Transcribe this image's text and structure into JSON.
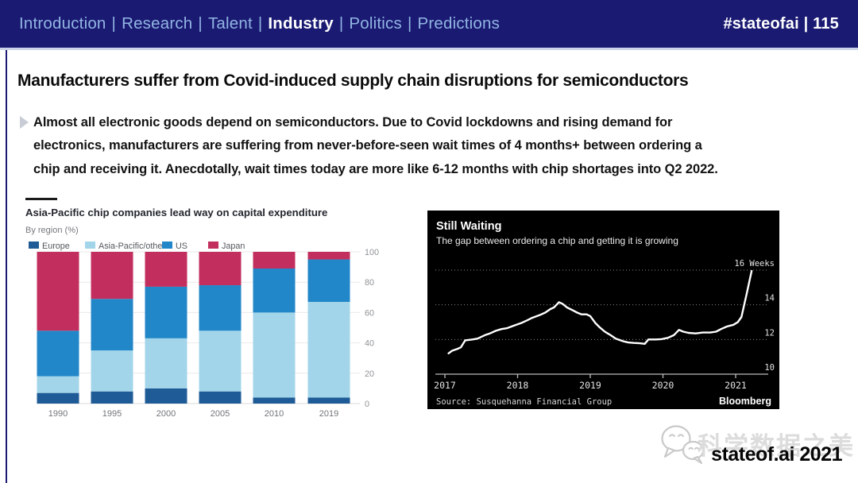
{
  "header": {
    "nav_items": [
      "Introduction",
      "Research",
      "Talent",
      "Industry",
      "Politics",
      "Predictions"
    ],
    "active_index": 3,
    "separator": "|",
    "page_tag": "#stateofai | 115",
    "colors": {
      "background": "#1a1a73",
      "link": "#92b5e2",
      "active": "#ffffff"
    }
  },
  "content": {
    "title": "Manufacturers suffer from Covid-induced supply chain disruptions for semiconductors",
    "body_lines": [
      "Almost all electronic goods depend on semiconductors. Due to Covid lockdowns and rising demand for",
      "electronics, manufacturers are suffering from never-before-seen wait times of 4 months+ between ordering a",
      "chip and receiving it. Anecdotally, wait times today are more like 6-12 months with chip shortages into Q2 2022."
    ]
  },
  "chart_data": [
    {
      "id": "capex-by-region",
      "type": "bar",
      "stacked": true,
      "title": "Asia-Pacific chip companies lead way on capital expenditure",
      "subtitle": "By region (%)",
      "categories": [
        "1990",
        "1995",
        "2000",
        "2005",
        "2010",
        "2019"
      ],
      "series": [
        {
          "name": "Europe",
          "color": "#1f5b97",
          "values": [
            7,
            8,
            10,
            8,
            4,
            4
          ]
        },
        {
          "name": "Asia-Pacific/other",
          "color": "#a2d5e9",
          "values": [
            11,
            27,
            33,
            40,
            56,
            63
          ]
        },
        {
          "name": "US",
          "color": "#2187c8",
          "values": [
            30,
            34,
            34,
            30,
            29,
            28
          ]
        },
        {
          "name": "Japan",
          "color": "#c22f5e",
          "values": [
            52,
            31,
            23,
            22,
            11,
            5
          ]
        }
      ],
      "ylim": [
        0,
        100
      ],
      "yticks": [
        0,
        20,
        40,
        60,
        80,
        100
      ],
      "y_axis_side": "right",
      "legend_position": "top",
      "grid": true
    },
    {
      "id": "chip-lead-times",
      "type": "line",
      "title": "Still Waiting",
      "subtitle": "The gap between ordering a chip and getting it is growing",
      "source": "Source: Susquehanna Financial Group",
      "brand": "Bloomberg",
      "background": "#000000",
      "line_color": "#ffffff",
      "ylim": [
        10,
        16.6
      ],
      "yticks": [
        10,
        12,
        14,
        16
      ],
      "ytick_labels": [
        "10",
        "12",
        "14",
        "16 Weeks"
      ],
      "grid_ticks": [
        12,
        14,
        16
      ],
      "xticks": [
        2017,
        2018,
        2019,
        2020,
        2021
      ],
      "xlim": [
        2016.95,
        2021.55
      ],
      "points": [
        [
          2017.05,
          11.2
        ],
        [
          2017.1,
          11.35
        ],
        [
          2017.17,
          11.45
        ],
        [
          2017.22,
          11.55
        ],
        [
          2017.28,
          11.95
        ],
        [
          2017.38,
          12.0
        ],
        [
          2017.45,
          12.05
        ],
        [
          2017.55,
          12.25
        ],
        [
          2017.62,
          12.35
        ],
        [
          2017.7,
          12.5
        ],
        [
          2017.78,
          12.6
        ],
        [
          2017.85,
          12.65
        ],
        [
          2017.95,
          12.8
        ],
        [
          2018.05,
          12.95
        ],
        [
          2018.13,
          13.1
        ],
        [
          2018.2,
          13.25
        ],
        [
          2018.3,
          13.4
        ],
        [
          2018.38,
          13.55
        ],
        [
          2018.45,
          13.75
        ],
        [
          2018.5,
          13.85
        ],
        [
          2018.57,
          14.15
        ],
        [
          2018.62,
          14.05
        ],
        [
          2018.68,
          13.85
        ],
        [
          2018.75,
          13.7
        ],
        [
          2018.82,
          13.55
        ],
        [
          2018.88,
          13.45
        ],
        [
          2018.95,
          13.45
        ],
        [
          2019.0,
          13.35
        ],
        [
          2019.07,
          12.95
        ],
        [
          2019.13,
          12.7
        ],
        [
          2019.2,
          12.45
        ],
        [
          2019.28,
          12.25
        ],
        [
          2019.35,
          12.05
        ],
        [
          2019.45,
          11.9
        ],
        [
          2019.52,
          11.83
        ],
        [
          2019.6,
          11.8
        ],
        [
          2019.68,
          11.78
        ],
        [
          2019.75,
          11.75
        ],
        [
          2019.8,
          12.0
        ],
        [
          2019.9,
          12.0
        ],
        [
          2019.98,
          12.02
        ],
        [
          2020.07,
          12.1
        ],
        [
          2020.15,
          12.25
        ],
        [
          2020.22,
          12.55
        ],
        [
          2020.28,
          12.45
        ],
        [
          2020.35,
          12.38
        ],
        [
          2020.45,
          12.35
        ],
        [
          2020.55,
          12.4
        ],
        [
          2020.65,
          12.4
        ],
        [
          2020.73,
          12.45
        ],
        [
          2020.8,
          12.6
        ],
        [
          2020.88,
          12.75
        ],
        [
          2020.97,
          12.85
        ],
        [
          2021.03,
          13.0
        ],
        [
          2021.08,
          13.3
        ],
        [
          2021.15,
          14.6
        ],
        [
          2021.22,
          15.95
        ]
      ]
    }
  ],
  "footer": {
    "watermark": "科学数据之美",
    "brand": "stateof.ai 2021",
    "icon": "wechat-icon"
  }
}
